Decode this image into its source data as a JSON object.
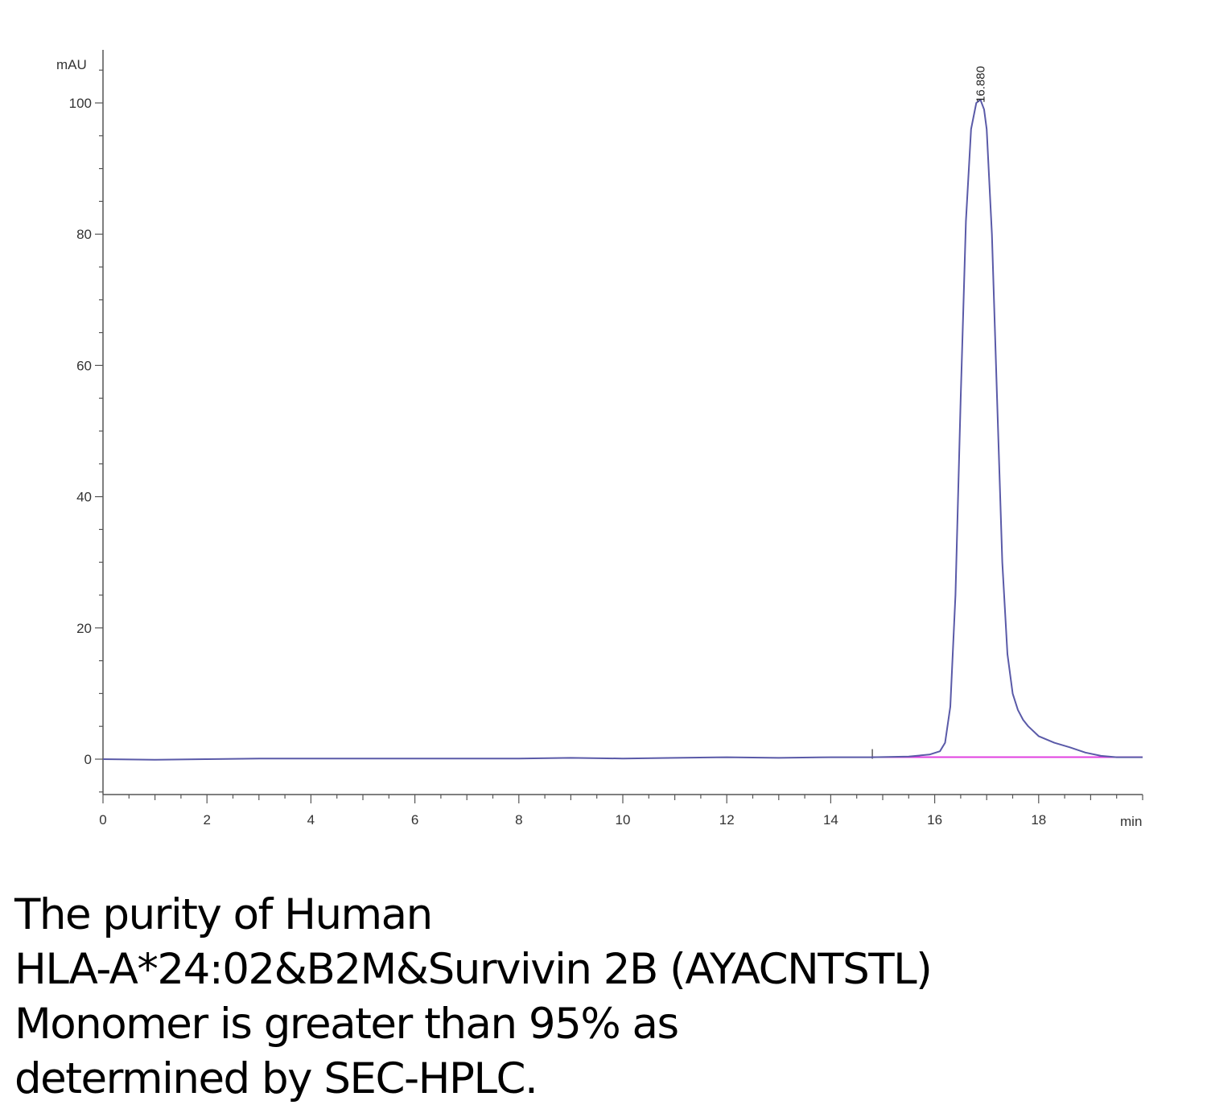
{
  "chart_data": {
    "type": "line",
    "title": "",
    "xlabel": "min",
    "ylabel": "mAU",
    "xlim": [
      0,
      20
    ],
    "ylim": [
      -5,
      105
    ],
    "x_ticks": [
      0,
      2,
      4,
      6,
      8,
      10,
      12,
      14,
      16,
      18
    ],
    "y_ticks": [
      0,
      20,
      40,
      60,
      80,
      100
    ],
    "grid": false,
    "legend": "none",
    "colors": {
      "trace": "#5a5aa8",
      "baseline": "#e040e0",
      "axis": "#555555"
    },
    "peak_label": "16.880",
    "baseline_start": {
      "x": 14.8,
      "y": 0.3
    },
    "series": [
      {
        "x": [
          0,
          1,
          2,
          3,
          4,
          5,
          6,
          7,
          8,
          9,
          10,
          11,
          12,
          13,
          14,
          14.8,
          15.5,
          15.9,
          16.1,
          16.2,
          16.3,
          16.4,
          16.5,
          16.6,
          16.7,
          16.8,
          16.88,
          16.95,
          17.0,
          17.1,
          17.2,
          17.3,
          17.4,
          17.5,
          17.6,
          17.7,
          17.8,
          18.0,
          18.3,
          18.6,
          18.9,
          19.2,
          19.5,
          20.0
        ],
        "y": [
          0,
          -0.1,
          0,
          0.1,
          0.1,
          0.1,
          0.1,
          0.1,
          0.1,
          0.2,
          0.1,
          0.2,
          0.3,
          0.2,
          0.3,
          0.3,
          0.4,
          0.7,
          1.2,
          2.5,
          8,
          25,
          55,
          82,
          96,
          100,
          100.5,
          99,
          96,
          80,
          55,
          30,
          16,
          10,
          7.5,
          6,
          5,
          3.5,
          2.5,
          1.8,
          1.0,
          0.5,
          0.3,
          0.3
        ]
      }
    ]
  },
  "caption": {
    "lines": [
      "The purity of Human",
      "HLA-A*24:02&B2M&Survivin 2B (AYACNTSTL)",
      "Monomer is greater than 95% as",
      "determined by SEC-HPLC."
    ]
  }
}
